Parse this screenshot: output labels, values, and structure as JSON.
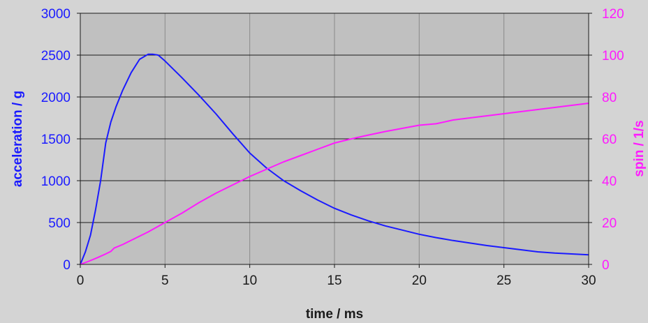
{
  "chart_data": {
    "type": "line",
    "title": "",
    "xlabel": "time  / ms",
    "ylabel_left": "acceleration  / g",
    "ylabel_right": "spin / 1/s",
    "xlim": [
      0,
      30
    ],
    "ylim_left": [
      0,
      3000
    ],
    "ylim_right": [
      0,
      120
    ],
    "x_ticks": [
      "0",
      "5",
      "10",
      "15",
      "20",
      "25",
      "30"
    ],
    "y_left_ticks": [
      "0",
      "500",
      "1000",
      "1500",
      "2000",
      "2500",
      "3000"
    ],
    "y_right_ticks": [
      "0",
      "20",
      "40",
      "60",
      "80",
      "100",
      "120"
    ],
    "grid": true,
    "colors": {
      "acceleration": "#1a1aff",
      "spin": "#ff1aff",
      "plot_bg": "#c0c0c0",
      "page_bg": "#d4d4d4"
    },
    "series": [
      {
        "axis": "left",
        "x": [
          0,
          0.3,
          0.6,
          0.9,
          1.2,
          1.5,
          1.8,
          2.1,
          2.5,
          3.0,
          3.5,
          4.0,
          4.3,
          4.6,
          5.0,
          6.0,
          7.0,
          8.0,
          9.0,
          10.0,
          11.0,
          12.0,
          13.0,
          14.0,
          15.0,
          16.0,
          17.0,
          18.0,
          19.0,
          20.0,
          21.0,
          22.0,
          23.0,
          24.0,
          25.0,
          26.0,
          27.0,
          28.0,
          29.0,
          30.0
        ],
        "values": [
          0,
          150,
          350,
          650,
          1000,
          1450,
          1700,
          1880,
          2080,
          2290,
          2450,
          2510,
          2510,
          2500,
          2430,
          2230,
          2020,
          1800,
          1560,
          1330,
          1150,
          1000,
          880,
          770,
          670,
          590,
          520,
          460,
          410,
          360,
          320,
          285,
          255,
          225,
          200,
          175,
          150,
          135,
          125,
          115
        ]
      },
      {
        "axis": "right",
        "x": [
          0,
          0.5,
          1.0,
          1.5,
          1.8,
          2.0,
          2.5,
          3,
          4,
          5,
          6,
          7,
          8,
          9,
          10,
          11,
          12,
          13,
          14,
          15,
          16,
          17,
          18,
          19,
          20,
          21,
          22,
          23,
          24,
          25,
          26,
          27,
          28,
          29,
          30
        ],
        "values": [
          0,
          1.5,
          3.2,
          5.0,
          6.2,
          7.8,
          9.5,
          11.5,
          15.5,
          20,
          24.5,
          29.5,
          34,
          38,
          42,
          45.5,
          49,
          52,
          55,
          58,
          60,
          61.8,
          63.5,
          65,
          66.5,
          67.2,
          69,
          70,
          71,
          72,
          73,
          74,
          75,
          76,
          77
        ]
      }
    ]
  }
}
